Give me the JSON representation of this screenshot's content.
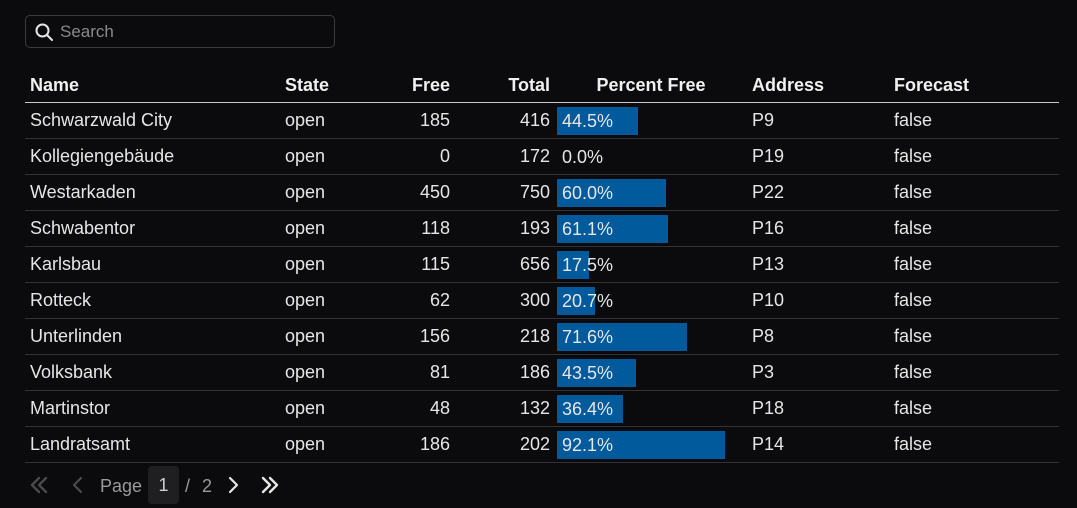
{
  "search": {
    "placeholder": "Search"
  },
  "table": {
    "columns": [
      "Name",
      "State",
      "Free",
      "Total",
      "Percent Free",
      "Address",
      "Forecast"
    ],
    "rows": [
      {
        "name": "Schwarzwald City",
        "state": "open",
        "free": "185",
        "total": "416",
        "percent": "44.5%",
        "percent_value": 44.5,
        "address": "P9",
        "forecast": "false"
      },
      {
        "name": "Kollegiengebäude",
        "state": "open",
        "free": "0",
        "total": "172",
        "percent": "0.0%",
        "percent_value": 0.0,
        "address": "P19",
        "forecast": "false"
      },
      {
        "name": "Westarkaden",
        "state": "open",
        "free": "450",
        "total": "750",
        "percent": "60.0%",
        "percent_value": 60.0,
        "address": "P22",
        "forecast": "false"
      },
      {
        "name": "Schwabentor",
        "state": "open",
        "free": "118",
        "total": "193",
        "percent": "61.1%",
        "percent_value": 61.1,
        "address": "P16",
        "forecast": "false"
      },
      {
        "name": "Karlsbau",
        "state": "open",
        "free": "115",
        "total": "656",
        "percent": "17.5%",
        "percent_value": 17.5,
        "address": "P13",
        "forecast": "false"
      },
      {
        "name": "Rotteck",
        "state": "open",
        "free": "62",
        "total": "300",
        "percent": "20.7%",
        "percent_value": 20.7,
        "address": "P10",
        "forecast": "false"
      },
      {
        "name": "Unterlinden",
        "state": "open",
        "free": "156",
        "total": "218",
        "percent": "71.6%",
        "percent_value": 71.6,
        "address": "P8",
        "forecast": "false"
      },
      {
        "name": "Volksbank",
        "state": "open",
        "free": "81",
        "total": "186",
        "percent": "43.5%",
        "percent_value": 43.5,
        "address": "P3",
        "forecast": "false"
      },
      {
        "name": "Martinstor",
        "state": "open",
        "free": "48",
        "total": "132",
        "percent": "36.4%",
        "percent_value": 36.4,
        "address": "P18",
        "forecast": "false"
      },
      {
        "name": "Landratsamt",
        "state": "open",
        "free": "186",
        "total": "202",
        "percent": "92.1%",
        "percent_value": 92.1,
        "address": "P14",
        "forecast": "false"
      }
    ]
  },
  "pagination": {
    "label": "Page",
    "current": "1",
    "separator": "/",
    "total": "2",
    "icons": [
      "first-page-icon",
      "previous-page-icon",
      "next-page-icon",
      "last-page-icon"
    ]
  },
  "colors": {
    "background": "#0b0b0d",
    "bar": "#005a9c",
    "text": "#e6e6e6",
    "muted": "#9a9a9e"
  }
}
